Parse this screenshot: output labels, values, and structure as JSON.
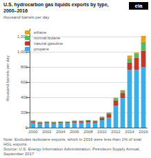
{
  "chart_data": {
    "type": "bar",
    "stacked": true,
    "title": "U.S. hydrocarbon gas liquids exports by type,",
    "subtitle": "2000–2016",
    "ylabel": "thousand barrels per day",
    "annotations": [
      "eia",
      "Note: Excludes isobutane exports, which in 2016 were less than 1% of total HGL exports.",
      "Source: U.S. Energy Information Administration, Petroleum Supply Annual, September 2017"
    ],
    "categories": [
      "2000",
      null,
      "2002",
      null,
      "2004",
      null,
      "2006",
      null,
      "2008",
      null,
      "2010",
      null,
      "2012",
      null,
      "2014",
      null,
      "2016"
    ],
    "series": [
      {
        "name": "propane",
        "color": "#3baee8",
        "values": [
          65,
          55,
          60,
          55,
          60,
          60,
          65,
          65,
          70,
          65,
          100,
          130,
          290,
          390,
          760,
          760,
          800
        ]
      },
      {
        "name": "natural gasoline",
        "color": "#c0392b",
        "values": [
          20,
          15,
          15,
          15,
          15,
          15,
          20,
          20,
          20,
          20,
          30,
          50,
          70,
          70,
          100,
          160,
          210
        ]
      },
      {
        "name": "normal butane",
        "color": "#5cb85c",
        "values": [
          10,
          8,
          8,
          8,
          8,
          8,
          10,
          10,
          10,
          10,
          15,
          20,
          30,
          30,
          50,
          60,
          120
        ]
      },
      {
        "name": "ethane",
        "color": "#e8a020",
        "values": [
          0,
          0,
          0,
          0,
          0,
          0,
          0,
          0,
          0,
          0,
          0,
          0,
          5,
          5,
          40,
          10,
          80
        ]
      }
    ],
    "ylim": [
      0,
      1300
    ],
    "yticks": [
      0,
      200,
      400,
      600,
      800,
      {
        "value": 1000,
        "label": "1,000"
      },
      {
        "value": 1200,
        "label": "1,200"
      }
    ],
    "grid": true,
    "legend": "upper left"
  }
}
